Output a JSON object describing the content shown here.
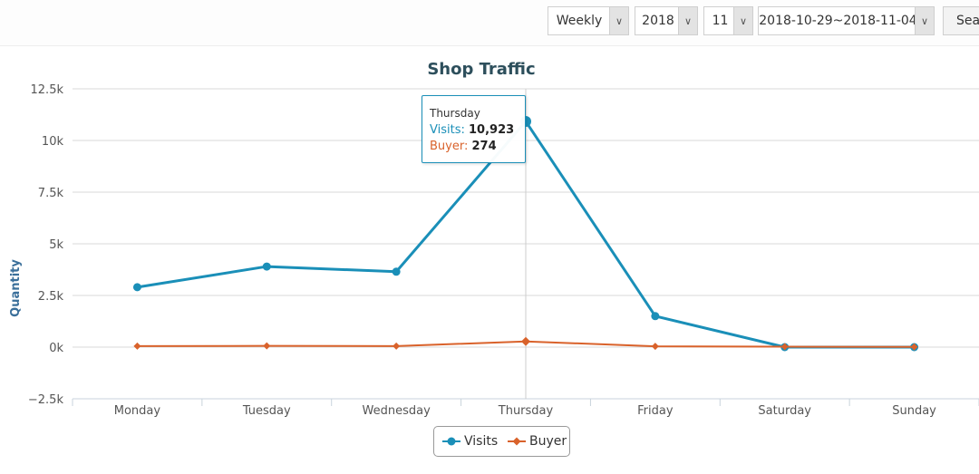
{
  "toolbar": {
    "period": "Weekly",
    "year": "2018",
    "month": "11",
    "date_range": "2018-10-29~2018-11-04",
    "search_label": "Search",
    "dropdown_icon": "chevron-down-icon"
  },
  "tooltip": {
    "day": "Thursday",
    "visits_label": "Visits",
    "visits_value": "10,923",
    "buyer_label": "Buyer",
    "buyer_value": "274"
  },
  "colors": {
    "visits": "#1a8fb8",
    "buyer": "#d9622b",
    "title": "#2d4f5c",
    "ylabel": "#3a6f9a"
  },
  "chart_data": {
    "type": "line",
    "title": "Shop Traffic",
    "xlabel": "",
    "ylabel": "Quantity",
    "categories": [
      "Monday",
      "Tuesday",
      "Wednesday",
      "Thursday",
      "Friday",
      "Saturday",
      "Sunday"
    ],
    "series": [
      {
        "name": "Visits",
        "values": [
          2900,
          3900,
          3650,
          10923,
          1500,
          0,
          0
        ]
      },
      {
        "name": "Buyer",
        "values": [
          50,
          60,
          50,
          274,
          40,
          20,
          10
        ]
      }
    ],
    "ylim": [
      -2500,
      12500
    ],
    "yticks": [
      -2500,
      0,
      2500,
      5000,
      7500,
      10000,
      12500
    ],
    "ytick_labels": [
      "−2.5k",
      "0k",
      "2.5k",
      "5k",
      "7.5k",
      "10k",
      "12.5k"
    ],
    "grid": true,
    "legend": "bottom-center",
    "highlighted_category": "Thursday"
  }
}
